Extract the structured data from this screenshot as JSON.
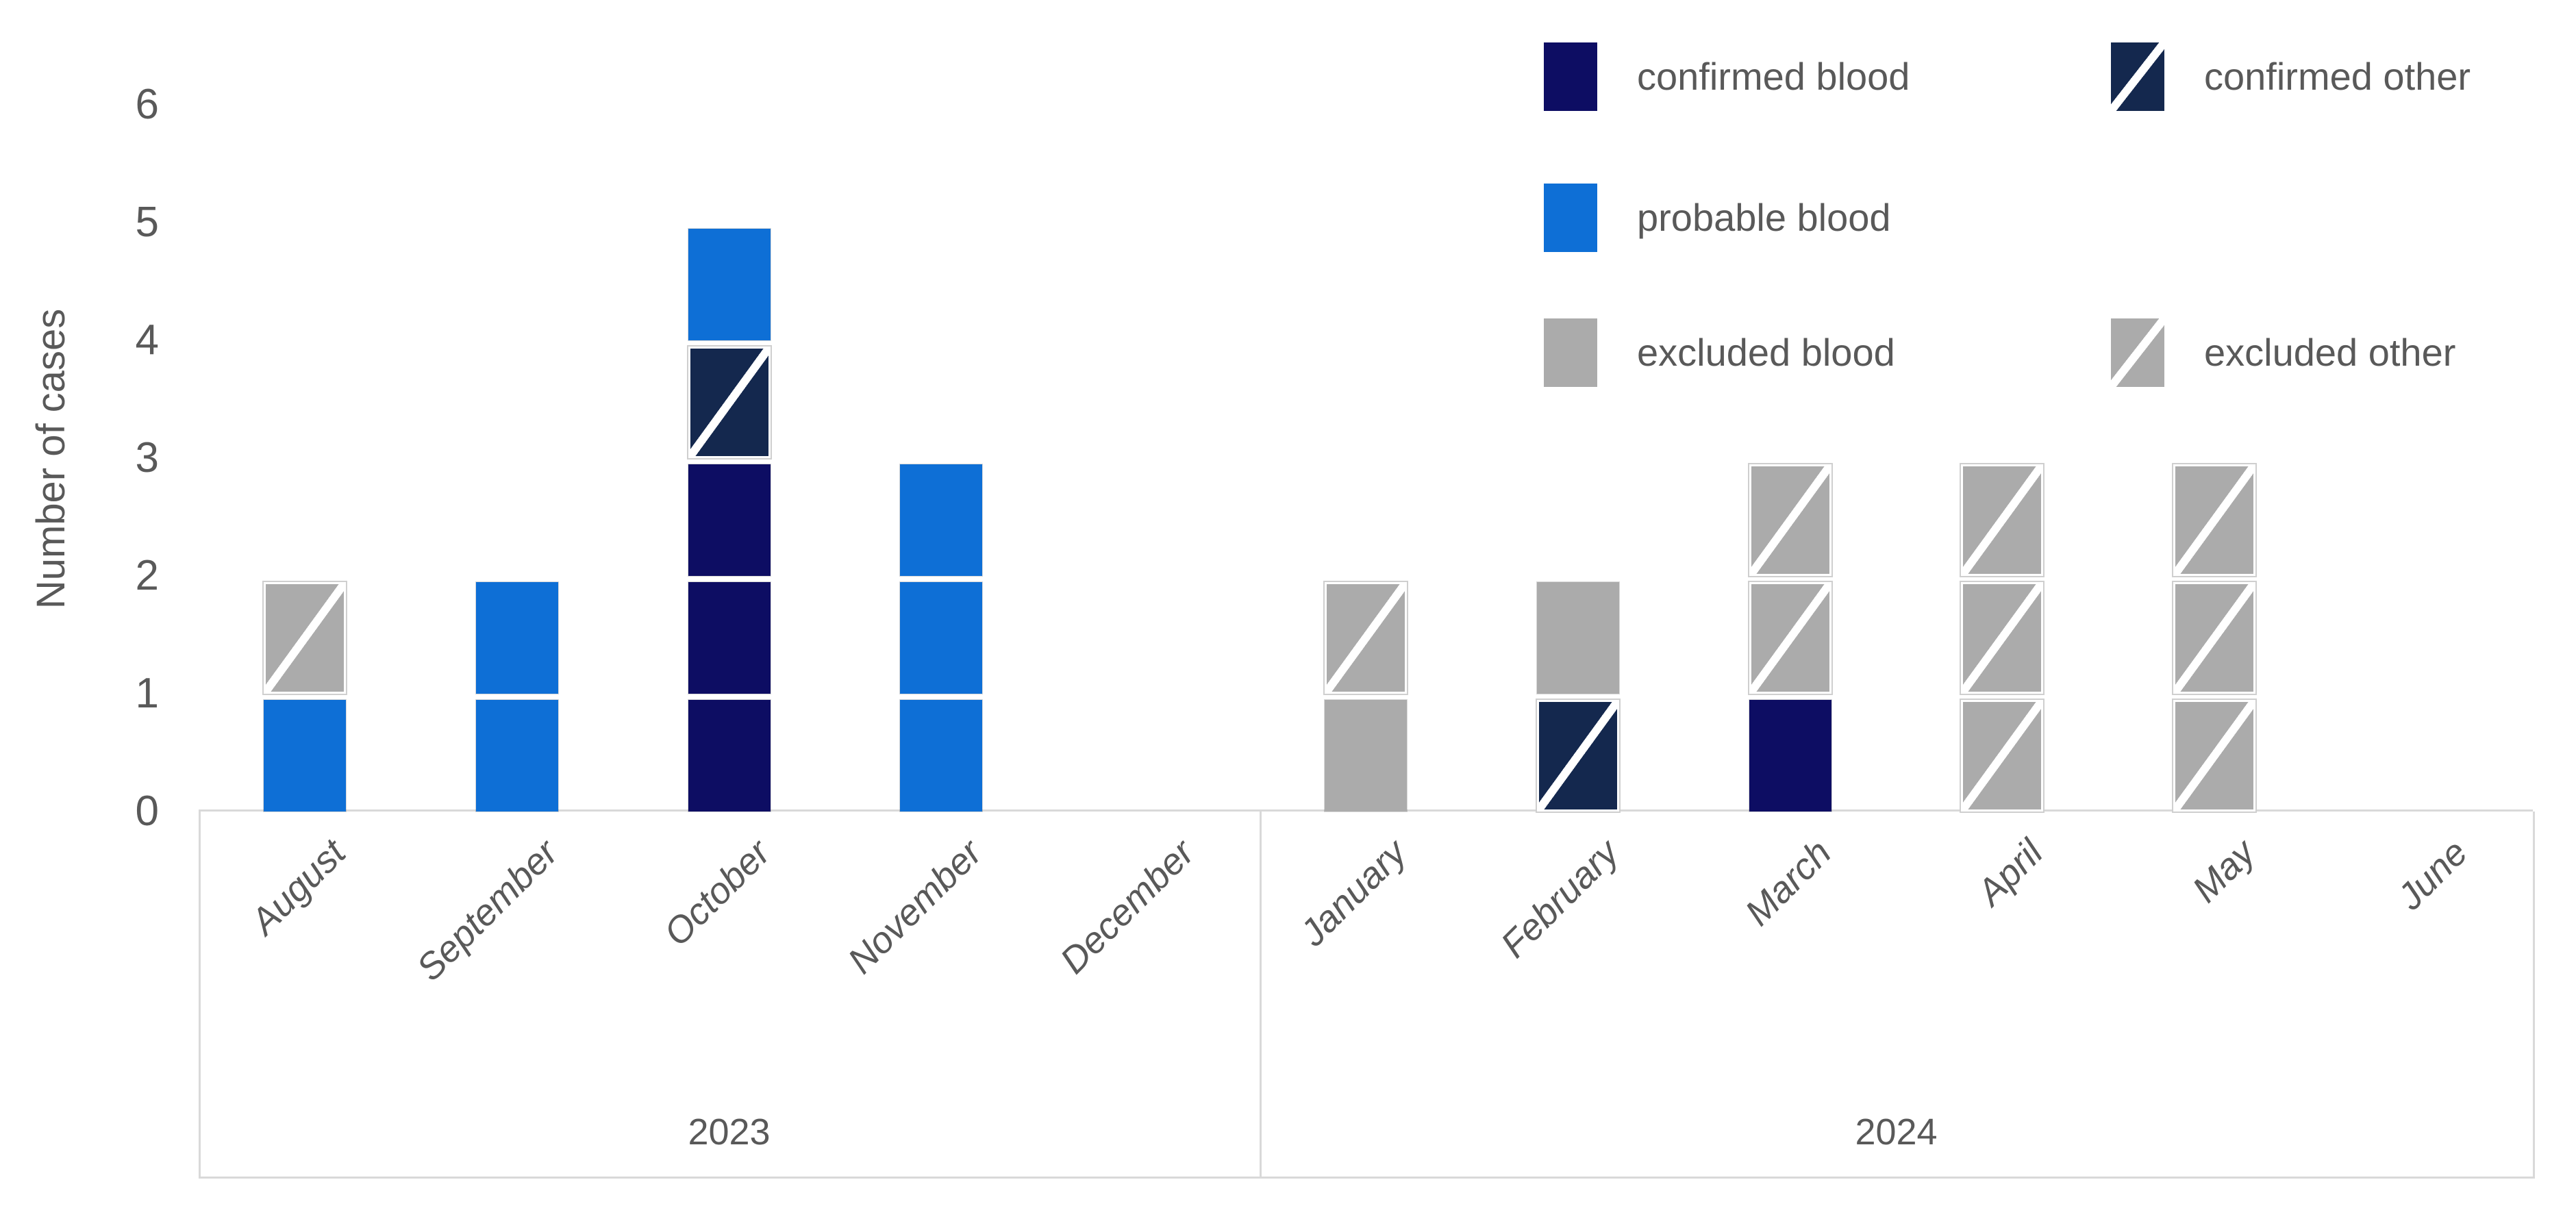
{
  "y_axis": {
    "title": "Number of cases",
    "ticks": [
      "0",
      "1",
      "2",
      "3",
      "4",
      "5",
      "6"
    ],
    "max": 6
  },
  "colors": {
    "confirmed_blood": "#0D0D63",
    "confirmed_other": "#14284E",
    "probable_blood": "#0E6FD6",
    "excluded_blood": "#ABABAB",
    "excluded_other": "#ABABAB",
    "hatch_stripe": "#FFFFFF",
    "axis_line": "#D9D9D9",
    "text": "#595959"
  },
  "legend": {
    "items": [
      {
        "label": "confirmed blood",
        "type": "confirmed_blood",
        "hatched": false,
        "column": 1,
        "row": 1
      },
      {
        "label": "confirmed other",
        "type": "confirmed_other",
        "hatched": true,
        "column": 2,
        "row": 1
      },
      {
        "label": "probable blood",
        "type": "probable_blood",
        "hatched": false,
        "column": 1,
        "row": 2
      },
      {
        "label": "excluded blood",
        "type": "excluded_blood",
        "hatched": false,
        "column": 1,
        "row": 3
      },
      {
        "label": "excluded other",
        "type": "excluded_other",
        "hatched": true,
        "column": 2,
        "row": 3
      }
    ]
  },
  "panels": [
    {
      "year": "2023",
      "months": [
        {
          "name": "August",
          "segments": [
            "probable_blood",
            "excluded_other"
          ]
        },
        {
          "name": "September",
          "segments": [
            "probable_blood",
            "probable_blood"
          ]
        },
        {
          "name": "October",
          "segments": [
            "confirmed_blood",
            "confirmed_blood",
            "confirmed_blood",
            "confirmed_other",
            "probable_blood"
          ]
        },
        {
          "name": "November",
          "segments": [
            "probable_blood",
            "probable_blood",
            "probable_blood"
          ]
        },
        {
          "name": "December",
          "segments": []
        }
      ]
    },
    {
      "year": "2024",
      "months": [
        {
          "name": "January",
          "segments": [
            "excluded_blood",
            "excluded_other"
          ]
        },
        {
          "name": "February",
          "segments": [
            "confirmed_other",
            "excluded_blood"
          ]
        },
        {
          "name": "March",
          "segments": [
            "confirmed_blood",
            "excluded_other",
            "excluded_other"
          ]
        },
        {
          "name": "April",
          "segments": [
            "excluded_other",
            "excluded_other",
            "excluded_other"
          ]
        },
        {
          "name": "May",
          "segments": [
            "excluded_other",
            "excluded_other",
            "excluded_other"
          ]
        },
        {
          "name": "June",
          "segments": []
        }
      ]
    }
  ],
  "chart_data": {
    "type": "bar",
    "stacked": true,
    "unit_blocks": true,
    "title": "",
    "xlabel": "",
    "ylabel": "Number of cases",
    "ylim": [
      0,
      6
    ],
    "grid": false,
    "legend_position": "top-right",
    "categories": [
      "August 2023",
      "September 2023",
      "October 2023",
      "November 2023",
      "December 2023",
      "January 2024",
      "February 2024",
      "March 2024",
      "April 2024",
      "May 2024",
      "June 2024"
    ],
    "year_groups": [
      {
        "year": "2023",
        "count": 5
      },
      {
        "year": "2024",
        "count": 6
      }
    ],
    "series": [
      {
        "name": "confirmed blood",
        "color": "#0D0D63",
        "hatched": false,
        "values": [
          0,
          0,
          3,
          0,
          0,
          0,
          0,
          1,
          0,
          0,
          0
        ]
      },
      {
        "name": "confirmed other",
        "color": "#14284E",
        "hatched": true,
        "values": [
          0,
          0,
          1,
          0,
          0,
          0,
          1,
          0,
          0,
          0,
          0
        ]
      },
      {
        "name": "probable blood",
        "color": "#0E6FD6",
        "hatched": false,
        "values": [
          1,
          2,
          1,
          3,
          0,
          0,
          0,
          0,
          0,
          0,
          0
        ]
      },
      {
        "name": "excluded blood",
        "color": "#ABABAB",
        "hatched": false,
        "values": [
          0,
          0,
          0,
          0,
          0,
          1,
          1,
          0,
          0,
          0,
          0
        ]
      },
      {
        "name": "excluded other",
        "color": "#ABABAB",
        "hatched": true,
        "values": [
          1,
          0,
          0,
          0,
          0,
          1,
          0,
          2,
          3,
          3,
          0
        ]
      }
    ],
    "totals_per_month": [
      2,
      2,
      5,
      3,
      0,
      2,
      2,
      3,
      3,
      3,
      0
    ]
  }
}
